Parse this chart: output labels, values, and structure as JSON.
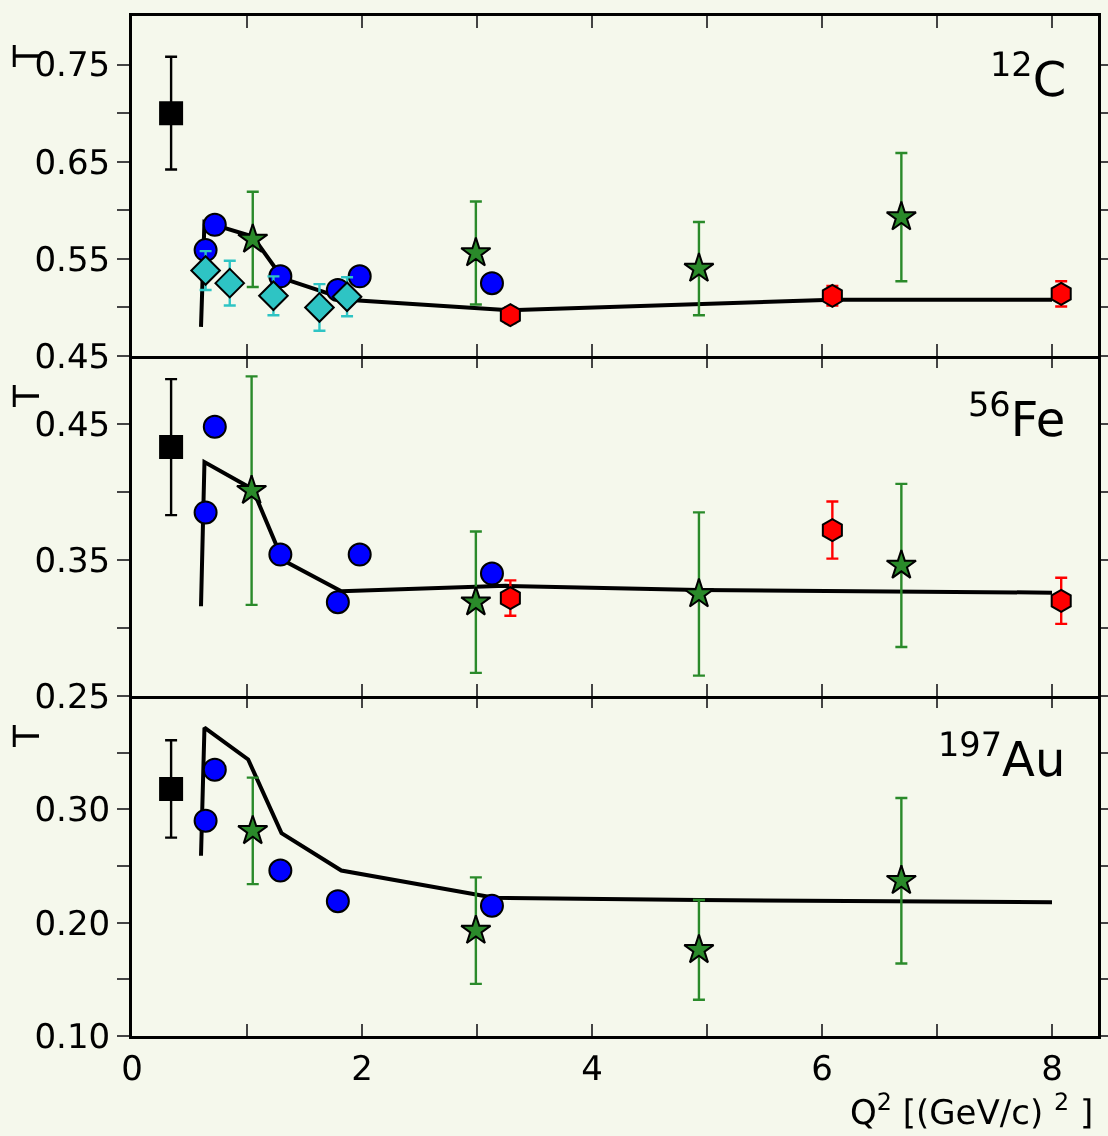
{
  "chart_data": [
    {
      "type": "scatter",
      "ylabel": "T",
      "annotations": [
        "$^{12}$C"
      ],
      "xlim": [
        0,
        8.4
      ],
      "xticks": [
        0,
        {
          "value": 1,
          "label": null
        },
        2,
        {
          "value": 3,
          "label": null
        },
        4,
        {
          "value": 5,
          "label": null
        },
        6,
        {
          "value": 7,
          "label": null
        },
        8
      ],
      "ylim": [
        0.45,
        0.8
      ],
      "yticks": [
        0.45,
        {
          "value": 0.5,
          "label": null
        },
        0.55,
        {
          "value": 0.6,
          "label": null
        },
        0.65,
        {
          "value": 0.7,
          "label": null
        },
        0.75
      ],
      "tick_labels": "y",
      "grid": false,
      "series": [
        {
          "type": "line",
          "marker": "none",
          "color": "#000000",
          "x": [
            0.6,
            0.63,
            1.05,
            1.31,
            1.87,
            3.28,
            6.09,
            8
          ],
          "values": [
            0.48,
            0.588,
            0.573,
            0.53,
            0.508,
            0.497,
            0.508,
            0.508
          ]
        },
        {
          "type": "scatter",
          "marker": "square",
          "color": "#000000",
          "x": [
            0.34
          ],
          "values": [
            0.7
          ],
          "errors": [
            0.058
          ]
        },
        {
          "type": "scatter",
          "marker": "circle",
          "color": "#0000ff",
          "x": [
            0.64,
            0.72,
            1.29,
            1.79,
            1.98,
            3.13
          ],
          "values": [
            0.559,
            0.585,
            0.532,
            0.518,
            0.532,
            0.525
          ]
        },
        {
          "type": "scatter",
          "marker": "diamond",
          "color": "#2ec4c4",
          "x": [
            0.64,
            0.85,
            1.23,
            1.63,
            1.87
          ],
          "values": [
            0.538,
            0.525,
            0.512,
            0.5,
            0.511
          ],
          "errors": [
            0.02,
            0.023,
            0.02,
            0.024,
            0.02
          ]
        },
        {
          "type": "scatter",
          "marker": "star",
          "color": "#2a8a2a",
          "x": [
            1.05,
            2.99,
            4.93,
            6.69
          ],
          "values": [
            0.57,
            0.556,
            0.54,
            0.593
          ],
          "errors": [
            0.049,
            0.053,
            0.048,
            0.066
          ]
        },
        {
          "type": "scatter",
          "color": "#ff0000",
          "x": [
            3.29,
            6.09,
            8.08
          ],
          "values": [
            0.492,
            0.512,
            0.514
          ],
          "errors": [
            0.008,
            0.01,
            0.013
          ]
        }
      ]
    },
    {
      "type": "scatter",
      "ylabel": "T",
      "annotations": [
        "$^{56}$Fe"
      ],
      "xlim": [
        0,
        8.4
      ],
      "xticks": [
        0,
        {
          "value": 1,
          "label": null
        },
        2,
        {
          "value": 3,
          "label": null
        },
        4,
        {
          "value": 5,
          "label": null
        },
        6,
        {
          "value": 7,
          "label": null
        },
        8
      ],
      "ylim": [
        0.25,
        0.5
      ],
      "yticks": [
        0.25,
        {
          "value": 0.3,
          "label": null
        },
        0.35,
        {
          "value": 0.4,
          "label": null
        },
        0.45
      ],
      "tick_labels": "y",
      "grid": false,
      "series": [
        {
          "type": "line",
          "marker": "none",
          "color": "#000000",
          "x": [
            0.6,
            0.63,
            1.05,
            1.31,
            1.82,
            3.25,
            4.93,
            8
          ],
          "values": [
            0.316,
            0.422,
            0.402,
            0.35,
            0.327,
            0.331,
            0.328,
            0.326
          ]
        },
        {
          "type": "scatter",
          "marker": "square",
          "color": "#000000",
          "x": [
            0.34
          ],
          "values": [
            0.433
          ],
          "errors": [
            0.05
          ]
        },
        {
          "type": "scatter",
          "marker": "circle",
          "color": "#0000ff",
          "x": [
            0.64,
            0.72,
            1.29,
            1.79,
            1.98,
            3.13
          ],
          "values": [
            0.385,
            0.448,
            0.354,
            0.319,
            0.354,
            0.34
          ]
        },
        {
          "type": "scatter",
          "marker": "star",
          "color": "#2a8a2a",
          "x": [
            1.04,
            2.99,
            4.93,
            6.69
          ],
          "values": [
            0.401,
            0.319,
            0.325,
            0.346
          ],
          "errors": [
            0.084,
            0.052,
            0.06,
            0.06
          ]
        },
        {
          "type": "scatter",
          "color": "#ff0000",
          "x": [
            3.29,
            6.09,
            8.08
          ],
          "values": [
            0.322,
            0.372,
            0.32
          ],
          "errors": [
            0.013,
            0.021,
            0.017
          ]
        }
      ]
    },
    {
      "type": "scatter",
      "ylabel": "T",
      "xlabel": "Q$^{2}$ [(GeV/c) $^{2}$ ]",
      "annotations": [
        "$^{197}$Au"
      ],
      "xlim": [
        0,
        8.4
      ],
      "xticks": [
        0,
        {
          "value": 1,
          "label": null
        },
        2,
        {
          "value": 3,
          "label": null
        },
        4,
        {
          "value": 5,
          "label": null
        },
        6,
        {
          "value": 7,
          "label": null
        },
        8
      ],
      "ylim": [
        0.1,
        0.4
      ],
      "yticks": [
        {
          "value": 0.1,
          "label": "0.10"
        },
        {
          "value": 0.15,
          "label": null
        },
        {
          "value": 0.2,
          "label": "0.20"
        },
        {
          "value": 0.25,
          "label": null
        },
        {
          "value": 0.3,
          "label": "0.30"
        },
        {
          "value": 0.35,
          "label": null
        }
      ],
      "grid": false,
      "series": [
        {
          "type": "line",
          "marker": "none",
          "color": "#000000",
          "x": [
            0.6,
            0.63,
            1.01,
            1.3,
            1.82,
            3.15,
            4.93,
            8
          ],
          "values": [
            0.259,
            0.372,
            0.344,
            0.279,
            0.246,
            0.222,
            0.22,
            0.218
          ]
        },
        {
          "type": "scatter",
          "marker": "square",
          "color": "#000000",
          "x": [
            0.34
          ],
          "values": [
            0.318
          ],
          "errors": [
            0.043
          ]
        },
        {
          "type": "scatter",
          "marker": "circle",
          "color": "#0000ff",
          "x": [
            0.64,
            0.72,
            1.29,
            1.79,
            3.13
          ],
          "values": [
            0.29,
            0.335,
            0.246,
            0.219,
            0.215
          ]
        },
        {
          "type": "scatter",
          "marker": "star",
          "color": "#2a8a2a",
          "x": [
            1.05,
            2.99,
            4.93,
            6.69
          ],
          "values": [
            0.281,
            0.193,
            0.176,
            0.237
          ],
          "errors": [
            0.047,
            0.047,
            0.044,
            0.073
          ]
        }
      ]
    }
  ]
}
